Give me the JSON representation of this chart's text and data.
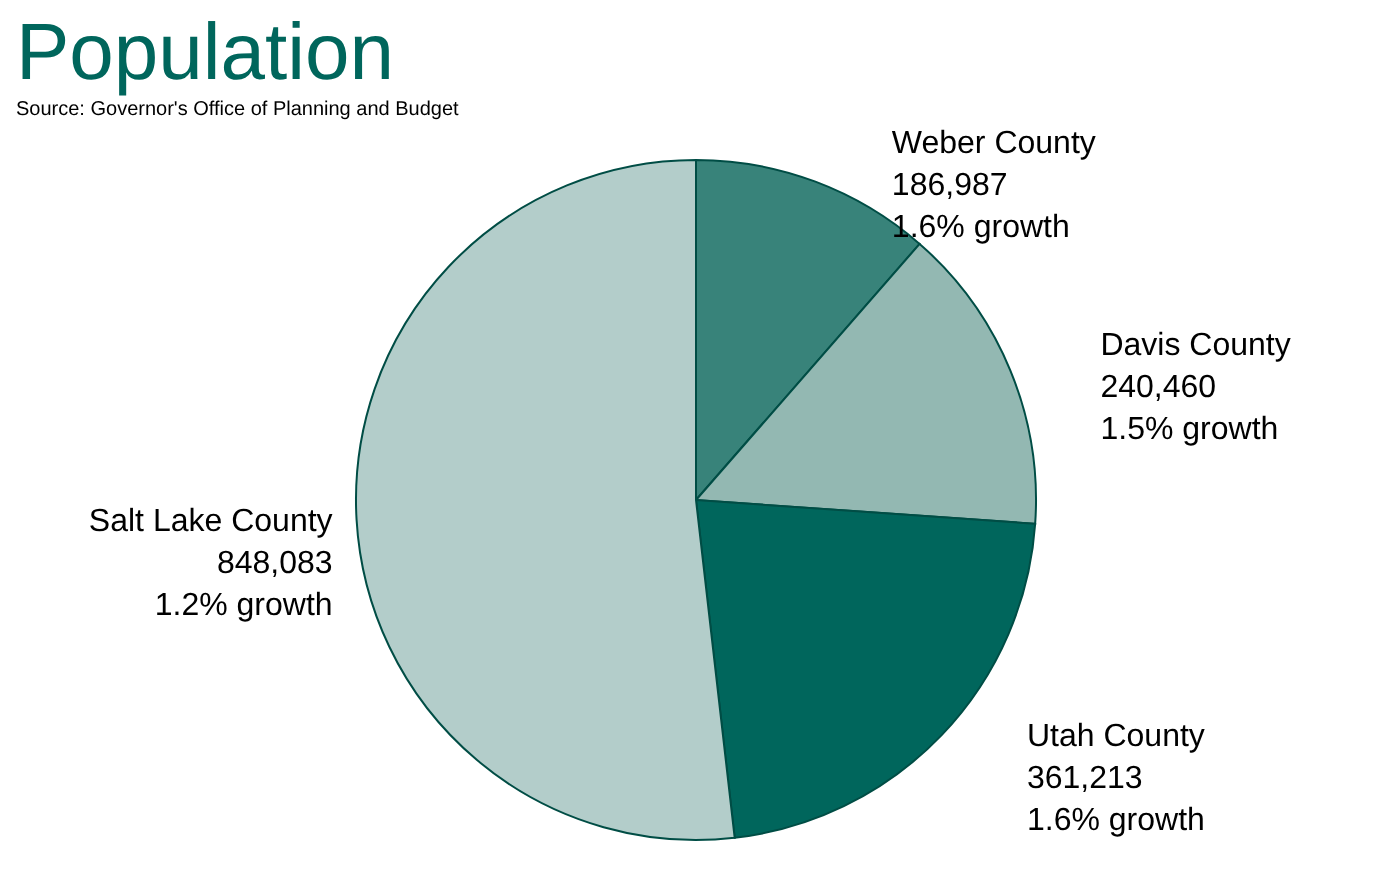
{
  "chart_data": {
    "type": "pie",
    "title": "Population",
    "categories": [
      "Weber County",
      "Davis County",
      "Utah County",
      "Salt Lake County"
    ],
    "values": [
      186987,
      240460,
      361213,
      848083
    ],
    "value_labels": [
      "186,987",
      "240,460",
      "361,213",
      "848,083"
    ],
    "colors": [
      "#38837a",
      "#93b8b2",
      "#00665c",
      "#b3cdca"
    ],
    "annotations": [
      "Source: Governor's Office of Planning and Budget",
      {
        "text": "1.6% growth",
        "x": "Weber County"
      },
      {
        "text": "1.5% growth",
        "x": "Davis County"
      },
      {
        "text": "1.6% growth",
        "x": "Utah County"
      },
      {
        "text": "1.2% growth",
        "x": "Salt Lake County"
      }
    ]
  }
}
